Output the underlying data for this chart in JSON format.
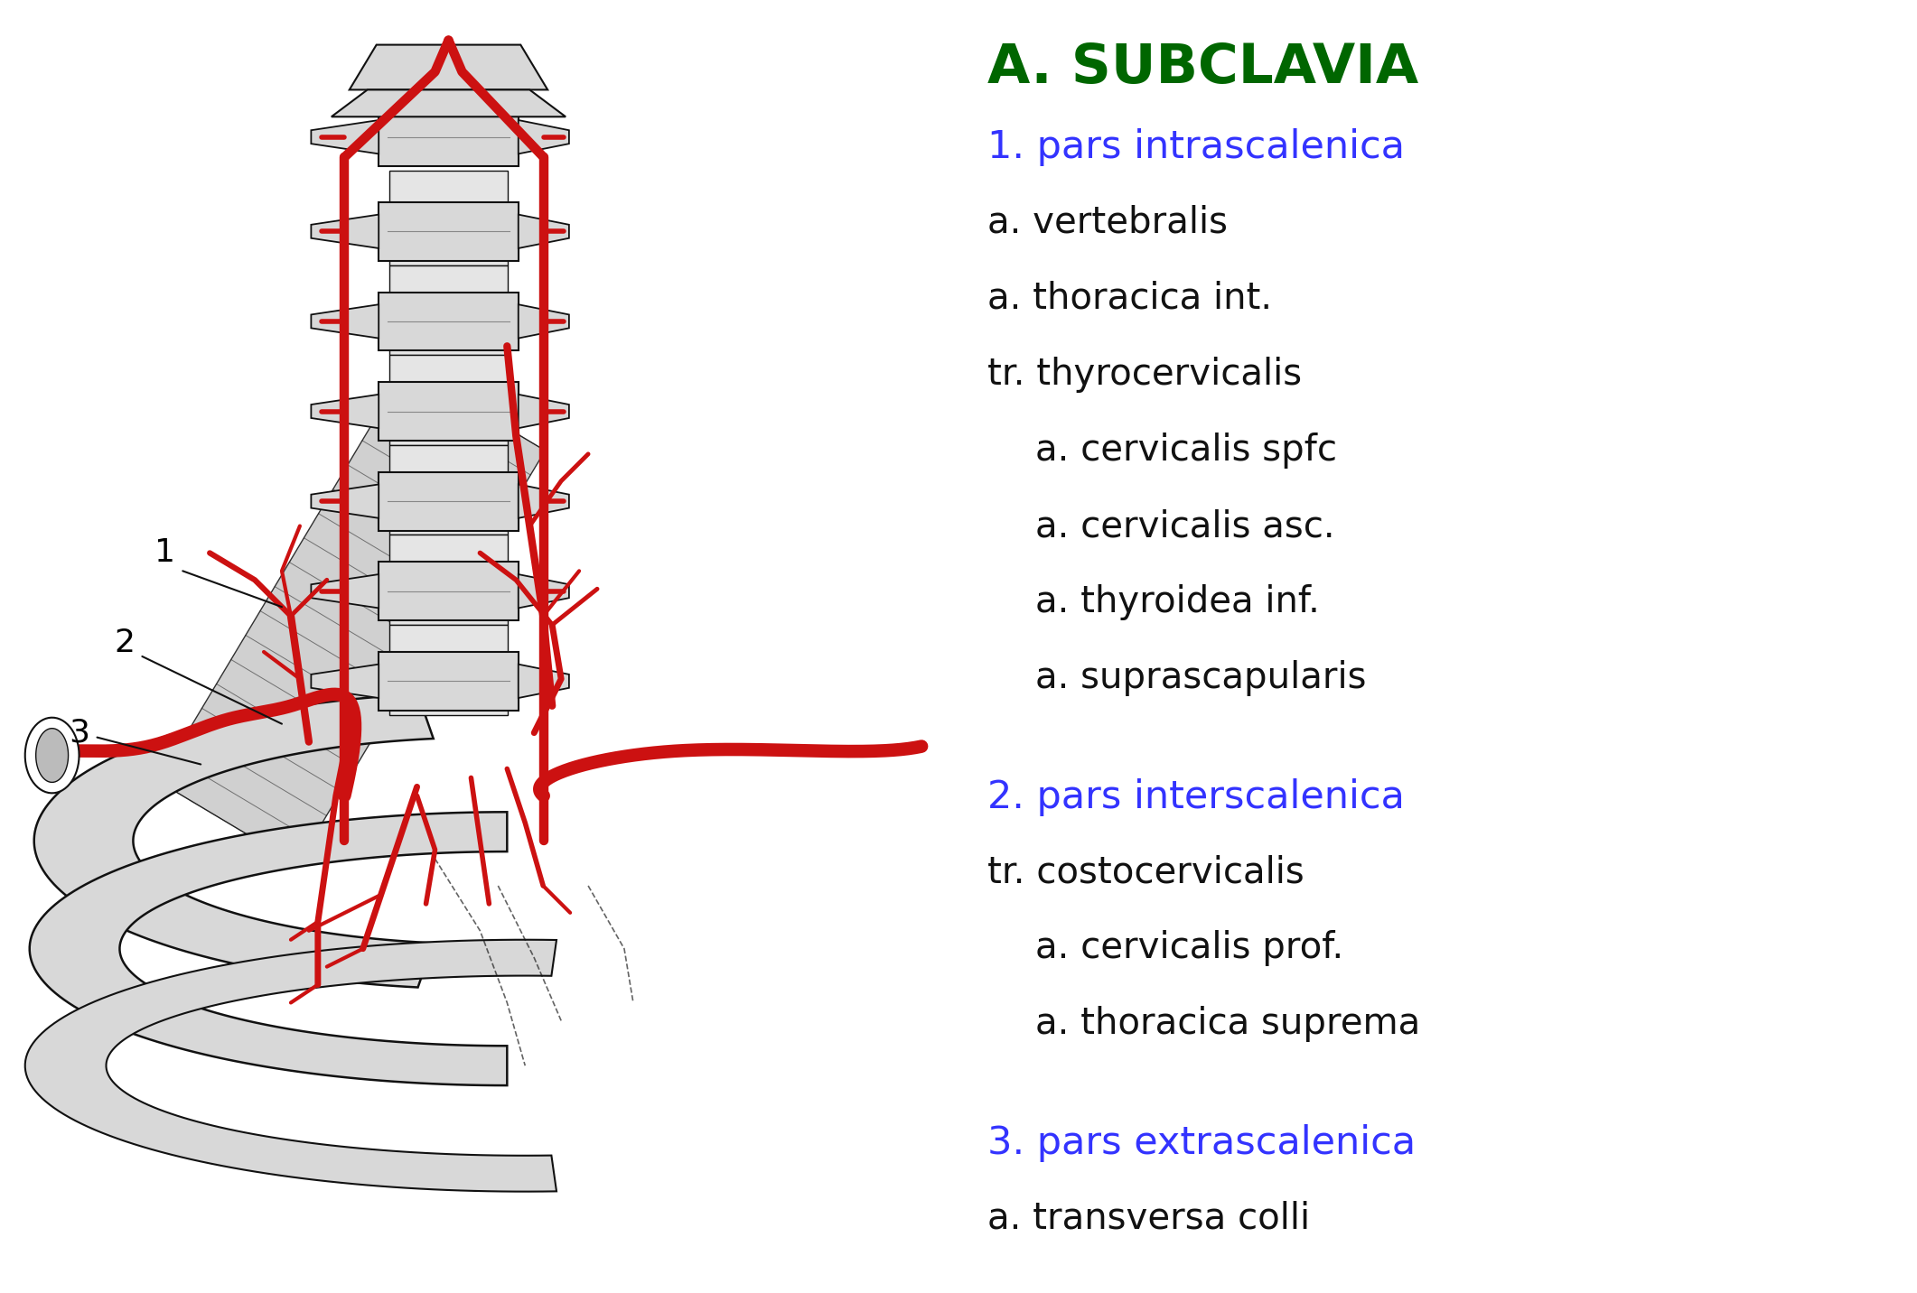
{
  "title": "A. SUBCLAVIA",
  "title_color": "#006600",
  "title_fontsize": 44,
  "title_bold": true,
  "sections": [
    {
      "label": "1. pars intrascalenica",
      "color": "#3333FF",
      "fontsize": 31,
      "bold": false,
      "indent": 0
    },
    {
      "label": "a. vertebralis",
      "color": "#111111",
      "fontsize": 29,
      "bold": false,
      "indent": 0
    },
    {
      "label": "a. thoracica int.",
      "color": "#111111",
      "fontsize": 29,
      "bold": false,
      "indent": 0
    },
    {
      "label": "tr. thyrocervicalis",
      "color": "#111111",
      "fontsize": 29,
      "bold": false,
      "indent": 0
    },
    {
      "label": "a. cervicalis spfc",
      "color": "#111111",
      "fontsize": 29,
      "bold": false,
      "indent": 1
    },
    {
      "label": "a. cervicalis asc.",
      "color": "#111111",
      "fontsize": 29,
      "bold": false,
      "indent": 1
    },
    {
      "label": "a. thyroidea inf.",
      "color": "#111111",
      "fontsize": 29,
      "bold": false,
      "indent": 1
    },
    {
      "label": "a. suprascapularis",
      "color": "#111111",
      "fontsize": 29,
      "bold": false,
      "indent": 1
    },
    {
      "label": "",
      "color": "#000000",
      "fontsize": 29,
      "bold": false,
      "indent": 0
    },
    {
      "label": "2. pars interscalenica",
      "color": "#3333FF",
      "fontsize": 31,
      "bold": false,
      "indent": 0
    },
    {
      "label": "tr. costocervicalis",
      "color": "#111111",
      "fontsize": 29,
      "bold": false,
      "indent": 0
    },
    {
      "label": "a. cervicalis prof.",
      "color": "#111111",
      "fontsize": 29,
      "bold": false,
      "indent": 1
    },
    {
      "label": "a. thoracica suprema",
      "color": "#111111",
      "fontsize": 29,
      "bold": false,
      "indent": 1
    },
    {
      "label": "",
      "color": "#000000",
      "fontsize": 29,
      "bold": false,
      "indent": 0
    },
    {
      "label": "3. pars extrascalenica",
      "color": "#3333FF",
      "fontsize": 31,
      "bold": false,
      "indent": 0
    },
    {
      "label": "a. transversa colli",
      "color": "#111111",
      "fontsize": 29,
      "bold": false,
      "indent": 0
    }
  ],
  "background_color": "#FFFFFF",
  "fig_width": 21.22,
  "fig_height": 14.32,
  "red": "#CC1111",
  "gray_light": "#D8D8D8",
  "gray_med": "#BBBBBB",
  "gray_dark": "#888888",
  "black": "#111111"
}
